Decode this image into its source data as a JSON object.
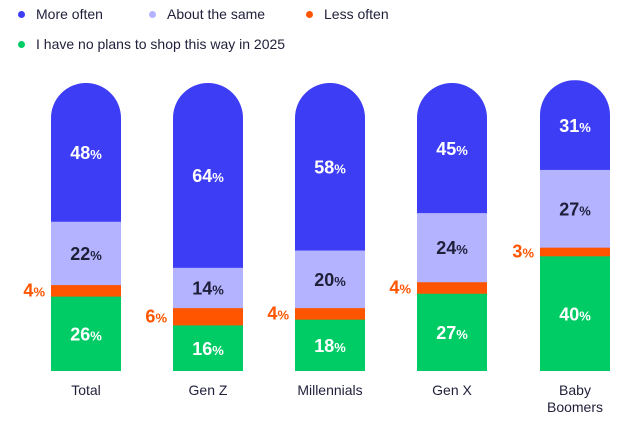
{
  "chart_data": {
    "type": "bar",
    "stacked": true,
    "orientation": "vertical",
    "legend_placement": "top-left",
    "grid": false,
    "ylim": [
      0,
      100
    ],
    "categories": [
      [
        "Total"
      ],
      [
        "Gen Z"
      ],
      [
        "Millennials"
      ],
      [
        "Gen X"
      ],
      [
        "Baby",
        "Boomers"
      ]
    ],
    "value_suffix": "%",
    "series": [
      {
        "name": "I have no plans to shop this way in 2025",
        "color": "#00cc66",
        "label_color": "#ffffff",
        "values": [
          26,
          16,
          18,
          27,
          40
        ]
      },
      {
        "name": "Less often",
        "color": "#ff5500",
        "label_color": "#ff5500",
        "values": [
          4,
          6,
          4,
          4,
          3
        ]
      },
      {
        "name": "About the same",
        "color": "#b3b3ff",
        "label_color": "#1f1f3a",
        "values": [
          22,
          14,
          20,
          24,
          27
        ]
      },
      {
        "name": "More often",
        "color": "#3d3df5",
        "label_color": "#ffffff",
        "values": [
          48,
          64,
          58,
          45,
          31
        ]
      }
    ]
  }
}
